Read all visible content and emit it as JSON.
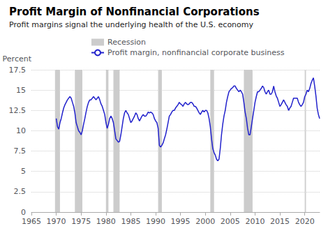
{
  "chart_data": {
    "type": "line",
    "title": "Profit Margin of Nonfinancial Corporations",
    "subtitle": "Profit margins signal the underlying health of the U.S. economy",
    "ylabel": "Percent",
    "xlim": [
      1965,
      2023
    ],
    "xticks": [
      1965,
      1970,
      1975,
      1980,
      1985,
      1990,
      1995,
      2000,
      2005,
      2010,
      2015,
      2020
    ],
    "ylim": [
      0,
      17.5
    ],
    "yticks": [
      0,
      2.5,
      5,
      7.5,
      10,
      12.5,
      15,
      17.5
    ],
    "grid": true,
    "legend": "upper left",
    "x": [
      1970.0,
      1970.25,
      1970.5,
      1970.75,
      1971.0,
      1971.25,
      1971.5,
      1971.75,
      1972.0,
      1972.25,
      1972.5,
      1972.75,
      1973.0,
      1973.25,
      1973.5,
      1973.75,
      1974.0,
      1974.25,
      1974.5,
      1974.75,
      1975.0,
      1975.25,
      1975.5,
      1975.75,
      1976.0,
      1976.25,
      1976.5,
      1976.75,
      1977.0,
      1977.25,
      1977.5,
      1977.75,
      1978.0,
      1978.25,
      1978.5,
      1978.75,
      1979.0,
      1979.25,
      1979.5,
      1979.75,
      1980.0,
      1980.25,
      1980.5,
      1980.75,
      1981.0,
      1981.25,
      1981.5,
      1981.75,
      1982.0,
      1982.25,
      1982.5,
      1982.75,
      1983.0,
      1983.25,
      1983.5,
      1983.75,
      1984.0,
      1984.25,
      1984.5,
      1984.75,
      1985.0,
      1985.25,
      1985.5,
      1985.75,
      1986.0,
      1986.25,
      1986.5,
      1986.75,
      1987.0,
      1987.25,
      1987.5,
      1987.75,
      1988.0,
      1988.25,
      1988.5,
      1988.75,
      1989.0,
      1989.25,
      1989.5,
      1989.75,
      1990.0,
      1990.25,
      1990.5,
      1990.75,
      1991.0,
      1991.25,
      1991.5,
      1991.75,
      1992.0,
      1992.25,
      1992.5,
      1992.75,
      1993.0,
      1993.25,
      1993.5,
      1993.75,
      1994.0,
      1994.25,
      1994.5,
      1994.75,
      1995.0,
      1995.25,
      1995.5,
      1995.75,
      1996.0,
      1996.25,
      1996.5,
      1996.75,
      1997.0,
      1997.25,
      1997.5,
      1997.75,
      1998.0,
      1998.25,
      1998.5,
      1998.75,
      1999.0,
      1999.25,
      1999.5,
      1999.75,
      2000.0,
      2000.25,
      2000.5,
      2000.75,
      2001.0,
      2001.25,
      2001.5,
      2001.75,
      2002.0,
      2002.25,
      2002.5,
      2002.75,
      2003.0,
      2003.25,
      2003.5,
      2003.75,
      2004.0,
      2004.25,
      2004.5,
      2004.75,
      2005.0,
      2005.25,
      2005.5,
      2005.75,
      2006.0,
      2006.25,
      2006.5,
      2006.75,
      2007.0,
      2007.25,
      2007.5,
      2007.75,
      2008.0,
      2008.25,
      2008.5,
      2008.75,
      2009.0,
      2009.25,
      2009.5,
      2009.75,
      2010.0,
      2010.25,
      2010.5,
      2010.75,
      2011.0,
      2011.25,
      2011.5,
      2011.75,
      2012.0,
      2012.25,
      2012.5,
      2012.75,
      2013.0,
      2013.25,
      2013.5,
      2013.75,
      2014.0,
      2014.25,
      2014.5,
      2014.75,
      2015.0,
      2015.25,
      2015.5,
      2015.75,
      2016.0,
      2016.25,
      2016.5,
      2016.75,
      2017.0,
      2017.25,
      2017.5,
      2017.75,
      2018.0,
      2018.25,
      2018.5,
      2018.75,
      2019.0,
      2019.25,
      2019.5,
      2019.75,
      2020.0,
      2020.25,
      2020.5,
      2020.75,
      2021.0,
      2021.25,
      2021.5,
      2021.75,
      2022.0,
      2022.25,
      2022.5,
      2022.75,
      2023.0
    ],
    "series": [
      {
        "name": "Recession",
        "type": "band",
        "color": "#cccccc",
        "ranges": [
          [
            1969.75,
            1970.75
          ],
          [
            1973.75,
            1975.25
          ],
          [
            1980.0,
            1980.5
          ],
          [
            1981.5,
            1982.75
          ],
          [
            1990.5,
            1991.25
          ],
          [
            2001.0,
            2001.75
          ],
          [
            2007.75,
            2009.5
          ],
          [
            2020.0,
            2020.25
          ]
        ]
      },
      {
        "name": "Profit margin, nonfinancial corporate business",
        "type": "line",
        "color": "#2222cc",
        "values": [
          11.5,
          10.5,
          10.2,
          11.0,
          11.5,
          12.2,
          12.8,
          13.2,
          13.5,
          13.8,
          14.0,
          14.2,
          14.0,
          13.5,
          13.0,
          12.2,
          11.0,
          10.5,
          10.0,
          9.8,
          9.5,
          10.0,
          10.8,
          11.5,
          12.3,
          13.0,
          13.5,
          13.8,
          13.8,
          14.0,
          14.2,
          14.0,
          13.8,
          14.0,
          14.2,
          13.8,
          13.3,
          13.0,
          12.5,
          12.0,
          11.0,
          10.3,
          10.8,
          11.5,
          11.8,
          11.5,
          11.0,
          10.0,
          9.0,
          8.8,
          8.6,
          8.7,
          9.5,
          10.5,
          11.5,
          12.2,
          12.5,
          12.2,
          12.0,
          11.5,
          11.0,
          11.2,
          11.5,
          11.8,
          12.2,
          12.0,
          11.5,
          11.2,
          11.5,
          11.8,
          12.0,
          11.8,
          11.8,
          12.0,
          12.3,
          12.2,
          12.3,
          12.2,
          12.0,
          11.5,
          11.2,
          11.0,
          10.3,
          8.2,
          8.0,
          8.2,
          8.5,
          9.0,
          9.5,
          10.2,
          11.0,
          11.8,
          12.0,
          12.3,
          12.5,
          12.5,
          12.8,
          13.0,
          13.2,
          13.5,
          13.3,
          13.2,
          13.0,
          13.3,
          13.5,
          13.3,
          13.2,
          13.3,
          13.5,
          13.5,
          13.3,
          13.0,
          13.0,
          12.8,
          12.5,
          12.2,
          12.0,
          12.3,
          12.5,
          12.3,
          12.5,
          12.5,
          12.2,
          11.5,
          10.5,
          9.0,
          7.8,
          7.3,
          7.0,
          6.5,
          6.3,
          6.5,
          7.8,
          9.5,
          10.8,
          11.8,
          12.5,
          13.5,
          14.2,
          14.8,
          15.0,
          15.2,
          15.3,
          15.5,
          15.5,
          15.2,
          15.0,
          14.8,
          15.0,
          14.8,
          14.5,
          13.5,
          12.3,
          11.5,
          10.3,
          9.5,
          9.5,
          10.5,
          11.5,
          12.5,
          13.5,
          14.2,
          14.8,
          14.8,
          15.0,
          15.2,
          15.5,
          15.3,
          14.8,
          14.5,
          14.8,
          15.0,
          14.5,
          14.5,
          14.8,
          15.5,
          14.8,
          14.3,
          14.0,
          13.5,
          13.0,
          13.2,
          13.5,
          13.8,
          13.5,
          13.2,
          13.0,
          12.5,
          12.8,
          13.0,
          13.5,
          14.0,
          14.0,
          14.0,
          14.0,
          13.5,
          13.2,
          13.0,
          13.2,
          13.5,
          14.2,
          14.5,
          15.0,
          14.8,
          15.2,
          15.8,
          16.2,
          16.5,
          15.5,
          14.3,
          12.8,
          12.0,
          11.5
        ]
      }
    ]
  }
}
